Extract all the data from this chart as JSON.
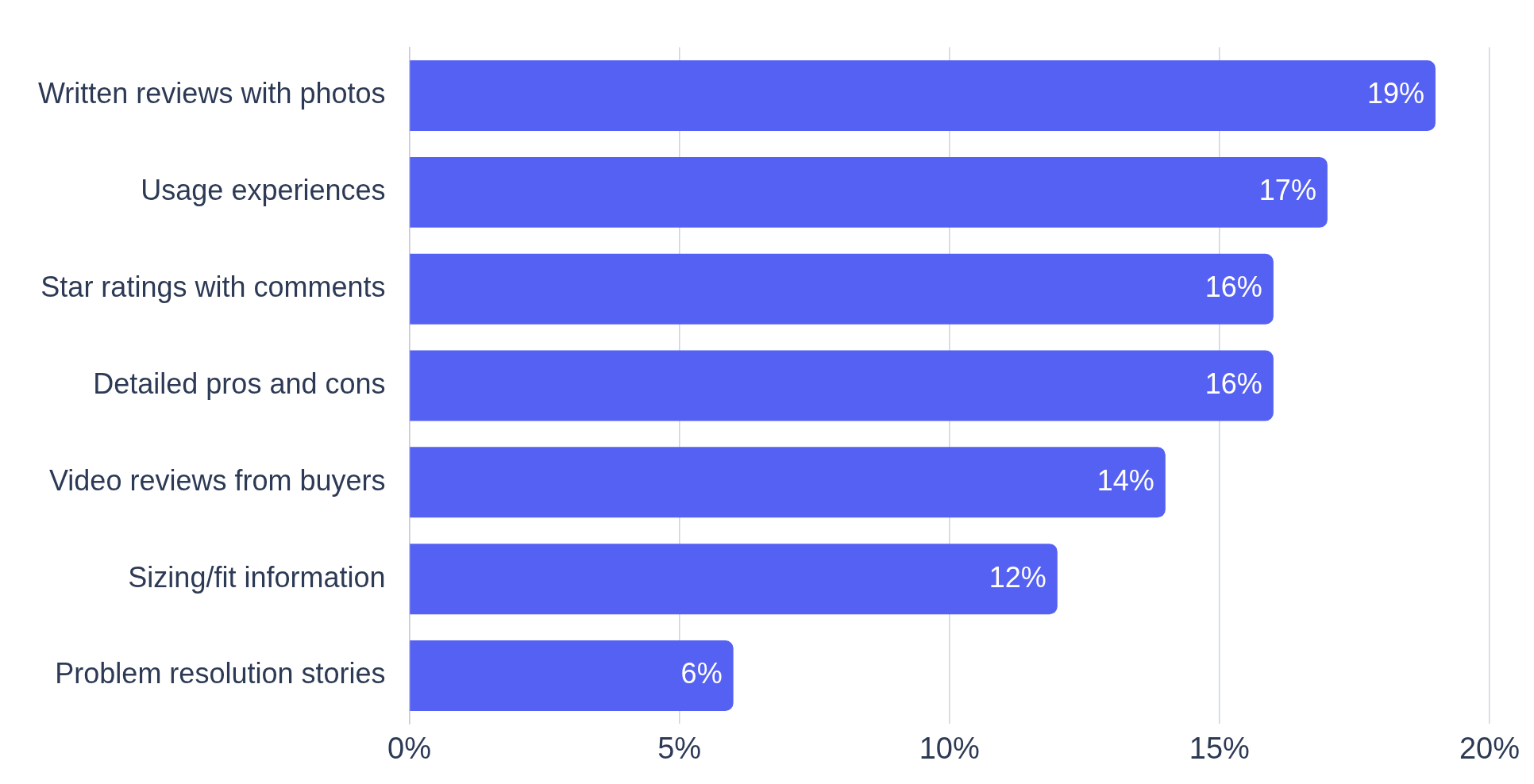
{
  "chart_data": {
    "type": "bar",
    "orientation": "horizontal",
    "categories": [
      "Written reviews with photos",
      "Usage experiences",
      "Star ratings with comments",
      "Detailed pros and cons",
      "Video reviews from buyers",
      "Sizing/fit information",
      "Problem resolution stories"
    ],
    "values": [
      19,
      17,
      16,
      16,
      14,
      12,
      6
    ],
    "value_labels": [
      "19%",
      "17%",
      "16%",
      "16%",
      "14%",
      "12%",
      "6%"
    ],
    "color": "#5561f2",
    "xlim": [
      0,
      20
    ],
    "xticks": [
      {
        "value": 0,
        "label": "0%"
      },
      {
        "value": 5,
        "label": "5%"
      },
      {
        "value": 10,
        "label": "10%"
      },
      {
        "value": 15,
        "label": "15%"
      },
      {
        "value": 20,
        "label": "20%"
      }
    ],
    "grid": "x",
    "legend": false
  }
}
